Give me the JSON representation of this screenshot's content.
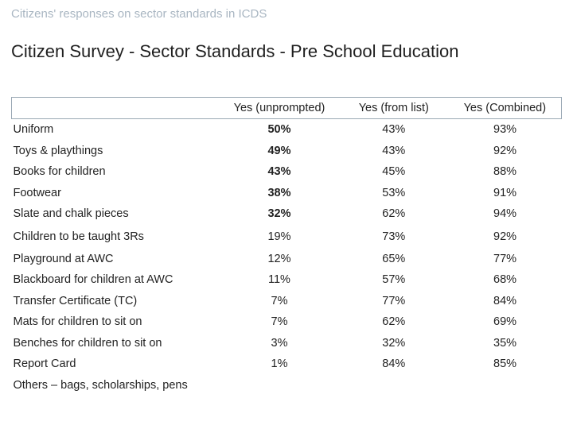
{
  "header": {
    "kicker": "Citizens' responses on sector standards in ICDS",
    "title": "Citizen Survey - Sector Standards - Pre School Education"
  },
  "table": {
    "columns": [
      "",
      "Yes (unprompted)",
      "Yes (from list)",
      "Yes (Combined)"
    ],
    "rows": [
      {
        "label": "Uniform",
        "unprompted": "50%",
        "from_list": "43%",
        "combined": "93%"
      },
      {
        "label": "Toys & playthings",
        "unprompted": "49%",
        "from_list": "43%",
        "combined": "92%"
      },
      {
        "label": "Books for children",
        "unprompted": "43%",
        "from_list": "45%",
        "combined": "88%"
      },
      {
        "label": "Footwear",
        "unprompted": "38%",
        "from_list": "53%",
        "combined": "91%"
      },
      {
        "label": "Slate and chalk pieces",
        "unprompted": "32%",
        "from_list": "62%",
        "combined": "94%"
      },
      {
        "label": "Children to be taught 3Rs",
        "unprompted": "19%",
        "from_list": "73%",
        "combined": "92%"
      },
      {
        "label": "Playground at AWC",
        "unprompted": "12%",
        "from_list": "65%",
        "combined": "77%"
      },
      {
        "label": "Blackboard for children at AWC",
        "unprompted": "11%",
        "from_list": "57%",
        "combined": "68%"
      },
      {
        "label": "Transfer Certificate (TC)",
        "unprompted": "7%",
        "from_list": "77%",
        "combined": "84%"
      },
      {
        "label": "Mats for children to sit on",
        "unprompted": "7%",
        "from_list": "62%",
        "combined": "69%"
      },
      {
        "label": "Benches for children to sit on",
        "unprompted": "3%",
        "from_list": "32%",
        "combined": "35%"
      },
      {
        "label": "Report Card",
        "unprompted": "1%",
        "from_list": "84%",
        "combined": "85%"
      },
      {
        "label": "Others – bags, scholarships, pens",
        "unprompted": "",
        "from_list": "",
        "combined": ""
      }
    ]
  },
  "colors": {
    "kicker": "#a9b6c2",
    "border": "#9aa8b4",
    "text": "#222222"
  }
}
